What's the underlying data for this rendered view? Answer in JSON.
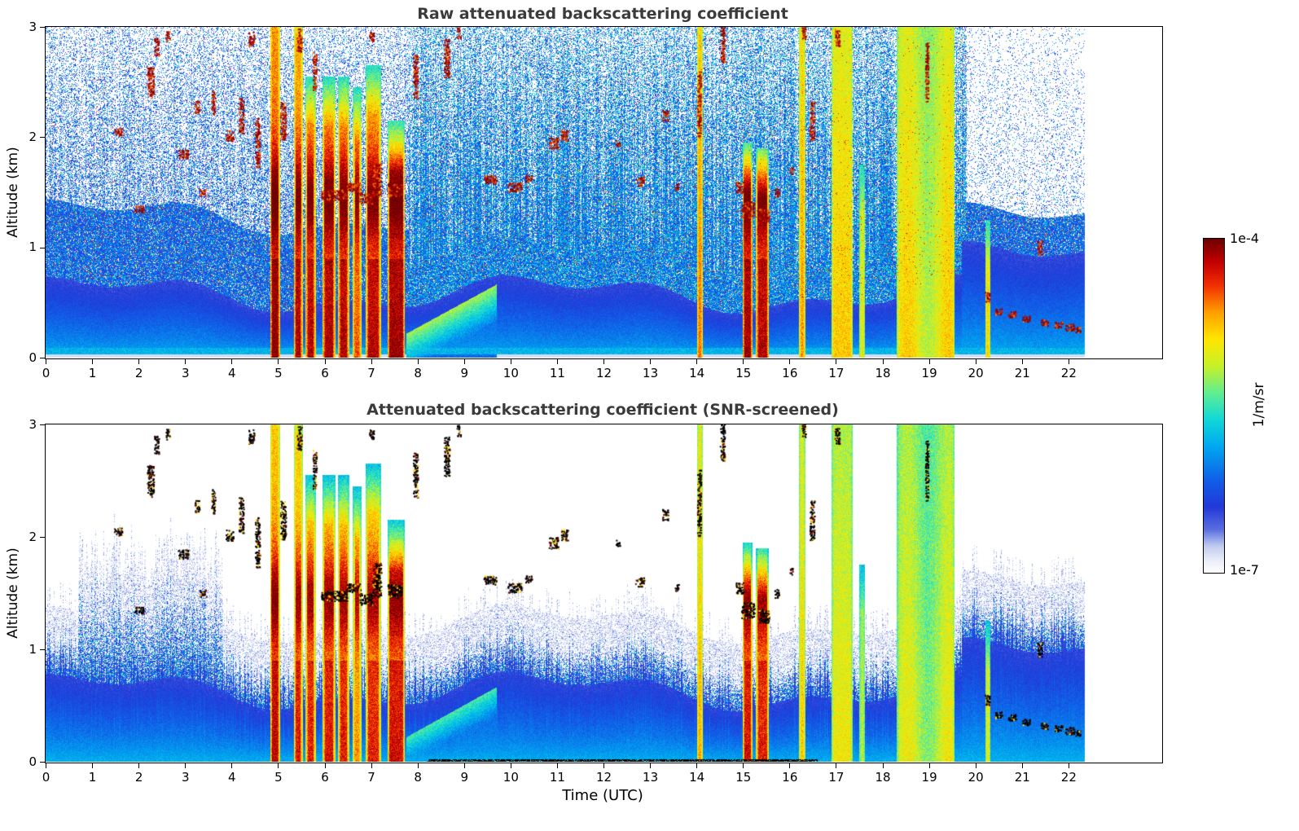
{
  "colorbar": {
    "label": "1/m/sr",
    "max_label": "1e-4",
    "min_label": "1e-7",
    "scale": "log"
  },
  "colormap_stops": [
    [
      0.0,
      "#ffffff"
    ],
    [
      0.04,
      "#e8ecf8"
    ],
    [
      0.08,
      "#c2cdf0"
    ],
    [
      0.13,
      "#5a6fe0"
    ],
    [
      0.2,
      "#2238d8"
    ],
    [
      0.28,
      "#1060e8"
    ],
    [
      0.38,
      "#00a8f0"
    ],
    [
      0.46,
      "#10d8d8"
    ],
    [
      0.54,
      "#60ee90"
    ],
    [
      0.62,
      "#c8f028"
    ],
    [
      0.7,
      "#ffe600"
    ],
    [
      0.78,
      "#ffa000"
    ],
    [
      0.86,
      "#f23000"
    ],
    [
      0.93,
      "#c40000"
    ],
    [
      1.0,
      "#6e0000"
    ]
  ],
  "chart_data": [
    {
      "type": "heatmap",
      "panel": "raw",
      "title": "Raw attenuated backscattering coefficient",
      "xlabel": "",
      "ylabel": "Altitude (km)",
      "xlim": [
        0,
        24
      ],
      "ylim": [
        0,
        3
      ],
      "x_ticks": [
        0,
        1,
        2,
        3,
        4,
        5,
        6,
        7,
        8,
        9,
        10,
        11,
        12,
        13,
        14,
        15,
        16,
        17,
        18,
        19,
        20,
        21,
        22
      ],
      "y_ticks": [
        0,
        1,
        2,
        3
      ],
      "value_range": [
        "1e-7",
        "1e-4"
      ],
      "value_units": "1/m/sr",
      "data_time_extent": [
        0,
        22.35
      ],
      "description": "Ceilometer raw attenuated backscatter time-height plot: dense blue boundary-layer below ~0.7 km, speckled noise aloft increasing during daytime, strong yellow/red precipitation columns near 05-08, 14, 15-15.5, 16.2, 17 and a broad yellow column 18.3-19.5 UTC, scattered dark-red cloud echoes aloft.",
      "features": {
        "boundary_layer": {
          "base_height_km": 0.6,
          "variation_km": 0.2,
          "rise_after_utc": 19.7
        },
        "precip_events": [
          {
            "t0": 4.82,
            "t1": 5.03,
            "z_top": 3.0,
            "intensity": 0.97
          },
          {
            "t0": 5.33,
            "t1": 5.52,
            "z_top": 2.9,
            "intensity": 0.9
          },
          {
            "t0": 5.58,
            "t1": 5.8,
            "z_top": 2.1,
            "intensity": 0.88
          },
          {
            "t0": 5.95,
            "t1": 6.22,
            "z_top": 2.1,
            "intensity": 0.9
          },
          {
            "t0": 6.28,
            "t1": 6.52,
            "z_top": 2.1,
            "intensity": 0.88
          },
          {
            "t0": 6.6,
            "t1": 6.78,
            "z_top": 2.0,
            "intensity": 0.82
          },
          {
            "t0": 6.88,
            "t1": 7.2,
            "z_top": 2.2,
            "intensity": 0.86
          },
          {
            "t0": 7.35,
            "t1": 7.72,
            "z_top": 1.7,
            "intensity": 0.92
          },
          {
            "t0": 14.0,
            "t1": 14.13,
            "z_top": 3.0,
            "intensity": 0.78
          },
          {
            "t0": 14.98,
            "t1": 15.2,
            "z_top": 1.5,
            "intensity": 0.92
          },
          {
            "t0": 15.27,
            "t1": 15.55,
            "z_top": 1.45,
            "intensity": 0.88
          },
          {
            "t0": 16.2,
            "t1": 16.33,
            "z_top": 3.0,
            "intensity": 0.72
          },
          {
            "t0": 16.9,
            "t1": 17.35,
            "z_top": 3.0,
            "intensity": 0.58
          },
          {
            "t0": 17.5,
            "t1": 17.62,
            "z_top": 1.3,
            "intensity": 0.45
          },
          {
            "t0": 18.3,
            "t1": 19.55,
            "z_top": 3.0,
            "intensity": 0.52
          },
          {
            "t0": 20.2,
            "t1": 20.32,
            "z_top": 0.8,
            "intensity": 0.55
          }
        ],
        "clouds": [
          [
            1.55,
            2.05,
            0.18,
            0.07
          ],
          [
            2.0,
            1.35,
            0.2,
            0.06
          ],
          [
            2.25,
            2.5,
            0.14,
            0.28
          ],
          [
            2.38,
            2.82,
            0.1,
            0.16
          ],
          [
            2.62,
            2.92,
            0.08,
            0.1
          ],
          [
            2.95,
            1.85,
            0.22,
            0.08
          ],
          [
            3.25,
            2.28,
            0.1,
            0.12
          ],
          [
            3.38,
            1.5,
            0.14,
            0.06
          ],
          [
            3.6,
            2.32,
            0.08,
            0.22
          ],
          [
            3.95,
            2.02,
            0.16,
            0.1
          ],
          [
            4.2,
            2.2,
            0.1,
            0.32
          ],
          [
            4.42,
            2.9,
            0.12,
            0.14
          ],
          [
            4.55,
            1.95,
            0.1,
            0.45
          ],
          [
            5.1,
            2.15,
            0.12,
            0.35
          ],
          [
            5.45,
            2.88,
            0.1,
            0.22
          ],
          [
            5.78,
            2.6,
            0.08,
            0.35
          ],
          [
            6.2,
            1.48,
            0.55,
            0.09
          ],
          [
            6.62,
            1.55,
            0.3,
            0.08
          ],
          [
            6.88,
            1.45,
            0.28,
            0.1
          ],
          [
            7.12,
            1.62,
            0.18,
            0.3
          ],
          [
            7.5,
            1.52,
            0.3,
            0.12
          ],
          [
            7.0,
            2.92,
            0.1,
            0.1
          ],
          [
            7.95,
            2.55,
            0.1,
            0.4
          ],
          [
            8.62,
            2.72,
            0.12,
            0.35
          ],
          [
            8.88,
            2.95,
            0.08,
            0.1
          ],
          [
            9.55,
            1.62,
            0.28,
            0.08
          ],
          [
            10.08,
            1.55,
            0.3,
            0.08
          ],
          [
            10.38,
            1.63,
            0.15,
            0.06
          ],
          [
            10.92,
            1.95,
            0.2,
            0.1
          ],
          [
            11.15,
            2.02,
            0.15,
            0.1
          ],
          [
            12.3,
            1.95,
            0.1,
            0.06
          ],
          [
            12.78,
            1.6,
            0.2,
            0.08
          ],
          [
            13.32,
            2.2,
            0.12,
            0.1
          ],
          [
            13.58,
            1.55,
            0.1,
            0.06
          ],
          [
            14.05,
            2.3,
            0.08,
            0.6
          ],
          [
            14.55,
            2.85,
            0.1,
            0.35
          ],
          [
            14.92,
            1.55,
            0.16,
            0.1
          ],
          [
            15.1,
            1.35,
            0.28,
            0.14
          ],
          [
            15.45,
            1.3,
            0.22,
            0.12
          ],
          [
            15.72,
            1.5,
            0.1,
            0.08
          ],
          [
            16.02,
            1.7,
            0.08,
            0.06
          ],
          [
            16.3,
            2.95,
            0.08,
            0.12
          ],
          [
            16.48,
            2.15,
            0.1,
            0.35
          ],
          [
            17.02,
            2.9,
            0.1,
            0.16
          ],
          [
            18.95,
            2.6,
            0.07,
            0.55
          ],
          [
            20.25,
            0.55,
            0.1,
            0.1
          ],
          [
            20.5,
            0.42,
            0.16,
            0.06
          ],
          [
            20.78,
            0.4,
            0.16,
            0.06
          ],
          [
            21.08,
            0.36,
            0.16,
            0.06
          ],
          [
            21.38,
            1.0,
            0.1,
            0.14
          ],
          [
            21.48,
            0.32,
            0.16,
            0.06
          ],
          [
            21.78,
            0.3,
            0.16,
            0.06
          ],
          [
            22.02,
            0.28,
            0.2,
            0.06
          ],
          [
            22.2,
            0.26,
            0.1,
            0.05
          ]
        ]
      }
    },
    {
      "type": "heatmap",
      "panel": "snr_screened",
      "title": "Attenuated backscattering coefficient (SNR-screened)",
      "xlabel": "Time (UTC)",
      "ylabel": "Altitude (km)",
      "xlim": [
        0,
        24
      ],
      "ylim": [
        0,
        3
      ],
      "x_ticks": [
        0,
        1,
        2,
        3,
        4,
        5,
        6,
        7,
        8,
        9,
        10,
        11,
        12,
        13,
        14,
        15,
        16,
        17,
        18,
        19,
        20,
        21,
        22
      ],
      "y_ticks": [
        0,
        1,
        2,
        3
      ],
      "value_range": [
        "1e-7",
        "1e-4"
      ],
      "value_units": "1/m/sr",
      "data_time_extent": [
        0,
        22.35
      ],
      "description": "Same field after SNR screening: noise removed (white background), ragged blue boundary layer, precipitation columns retained, cloud echoes rendered as black marks, broad green/cyan column 18.3-19.5 UTC."
    }
  ]
}
